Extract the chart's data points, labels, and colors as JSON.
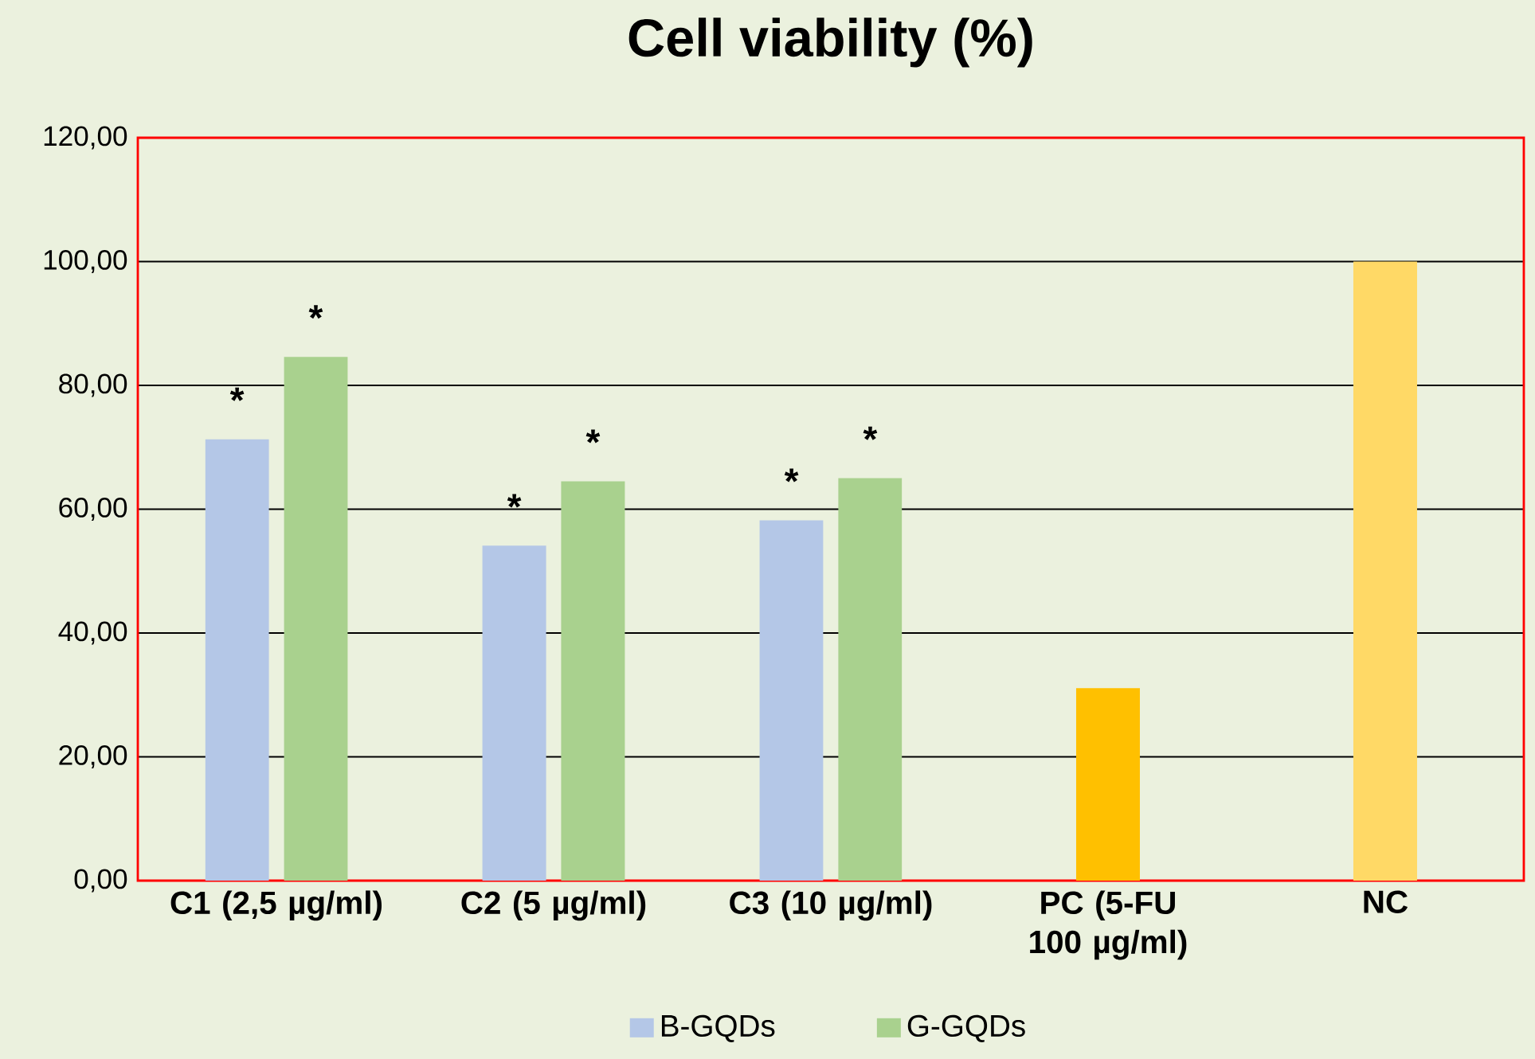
{
  "chart_data": {
    "type": "bar",
    "title": "Cell viability (%)",
    "categories": [
      "C1 (2,5 µg/ml)",
      "C2 (5 µg/ml)",
      "C3 (10 µg/ml)",
      "PC (5-FU 100 µg/ml)",
      "NC"
    ],
    "series": [
      {
        "name": "B-GQDs",
        "color": "#b4c7e7",
        "values": [
          71.3,
          54.1,
          58.2,
          null,
          null
        ]
      },
      {
        "name": "G-GQDs",
        "color": "#a9d18e",
        "values": [
          84.6,
          64.5,
          65.0,
          null,
          null
        ]
      },
      {
        "colors": [
          null,
          null,
          null,
          "#ffc000",
          "#ffd966"
        ],
        "values": [
          null,
          null,
          null,
          31.1,
          100
        ]
      }
    ],
    "ylim": [
      0,
      120
    ],
    "yticks": [
      {
        "value": 0,
        "label": "0,00"
      },
      {
        "value": 20,
        "label": "20,00"
      },
      {
        "value": 40,
        "label": "40,00"
      },
      {
        "value": 60,
        "label": "60,00"
      },
      {
        "value": 80,
        "label": "80,00"
      },
      {
        "value": 100,
        "label": "100,00"
      },
      {
        "value": 120,
        "label": "120,00"
      }
    ],
    "grid": "y",
    "legend": "bottom",
    "annotations": [
      "*",
      "*",
      "*",
      "*",
      "*",
      "*"
    ]
  }
}
